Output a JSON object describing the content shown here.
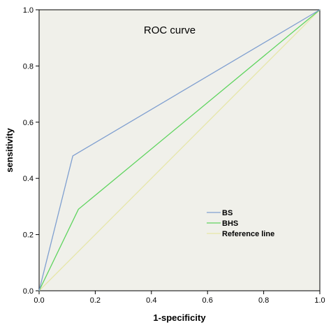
{
  "chart_data": {
    "type": "line",
    "title": "ROC curve",
    "xlabel": "1-specificity",
    "ylabel": "sensitivity",
    "xlim": [
      0,
      1
    ],
    "ylim": [
      0,
      1
    ],
    "xticks": [
      "0.0",
      "0.2",
      "0.4",
      "0.6",
      "0.8",
      "1.0"
    ],
    "yticks": [
      "0.0",
      "0.2",
      "0.4",
      "0.6",
      "0.8",
      "1.0"
    ],
    "grid": false,
    "background": "#f0f0ea",
    "legend_position": "bottom-right",
    "series": [
      {
        "name": "BS",
        "color": "#7f9fd0",
        "x": [
          0.0,
          0.12,
          1.0
        ],
        "y": [
          0.0,
          0.48,
          1.0
        ]
      },
      {
        "name": "BHS",
        "color": "#5fd45f",
        "x": [
          0.0,
          0.14,
          1.0
        ],
        "y": [
          0.0,
          0.29,
          1.0
        ]
      },
      {
        "name": "Reference line",
        "color": "#e6e6a8",
        "x": [
          0.0,
          1.0
        ],
        "y": [
          0.0,
          1.0
        ]
      }
    ]
  }
}
